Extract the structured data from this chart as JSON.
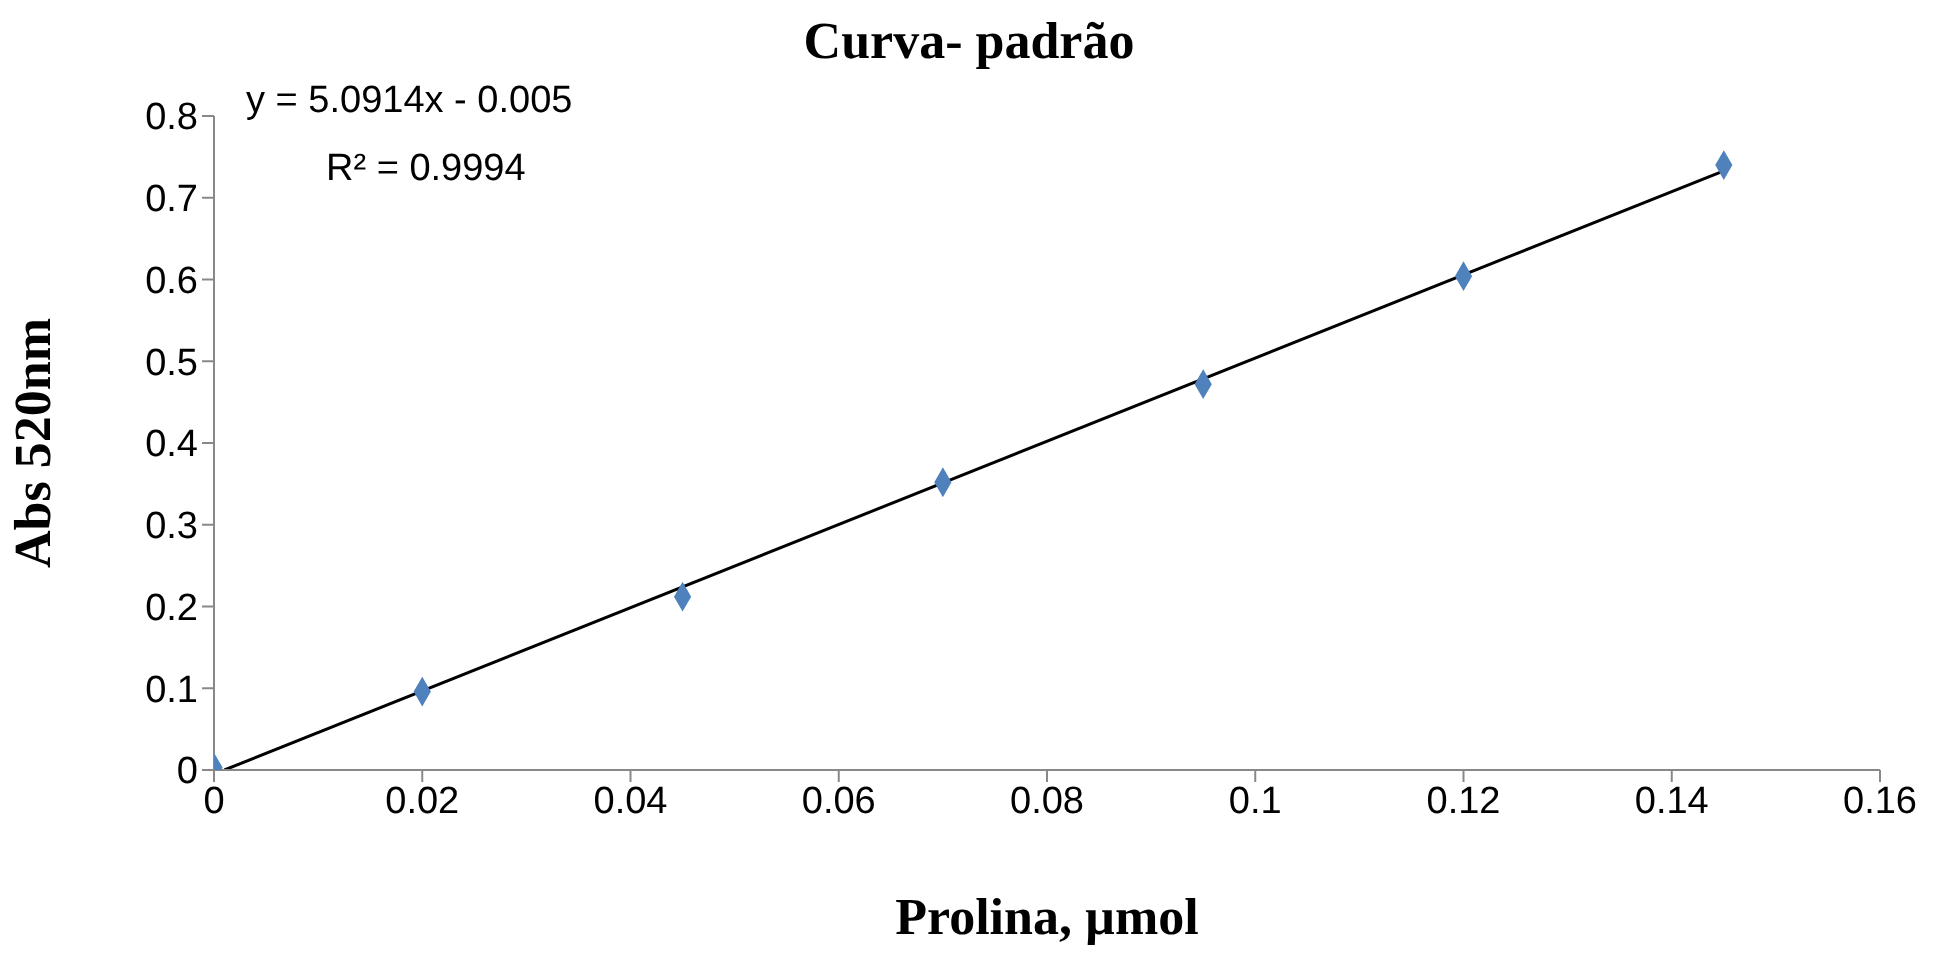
{
  "chart_data": {
    "type": "scatter",
    "title": "Curva- padrão",
    "xlabel": "Prolina, µmol",
    "ylabel": "Abs 520nm",
    "annotations": [
      "y = 5.0914x - 0.005",
      "R² = 0.9994"
    ],
    "xlim": [
      0,
      0.16
    ],
    "xticks": [
      0,
      0.02,
      0.04,
      0.06,
      0.08,
      0.1,
      0.12,
      0.14,
      0.16
    ],
    "ylim": [
      0,
      0.8
    ],
    "yticks": [
      0,
      0.1,
      0.2,
      0.3,
      0.4,
      0.5,
      0.6,
      0.7,
      0.8
    ],
    "grid": false,
    "legend": false,
    "marker": "diamond",
    "series": [
      {
        "color": "#4f81bd",
        "x": [
          0,
          0.02,
          0.045,
          0.07,
          0.095,
          0.12,
          0.145
        ],
        "values": [
          0.003,
          0.096,
          0.212,
          0.352,
          0.472,
          0.604,
          0.74
        ]
      },
      {
        "type": "line",
        "color": "#000000",
        "x": [
          0.001,
          0.145
        ],
        "values": [
          0,
          0.733
        ],
        "marker": "none",
        "line_style": "solid"
      }
    ]
  }
}
